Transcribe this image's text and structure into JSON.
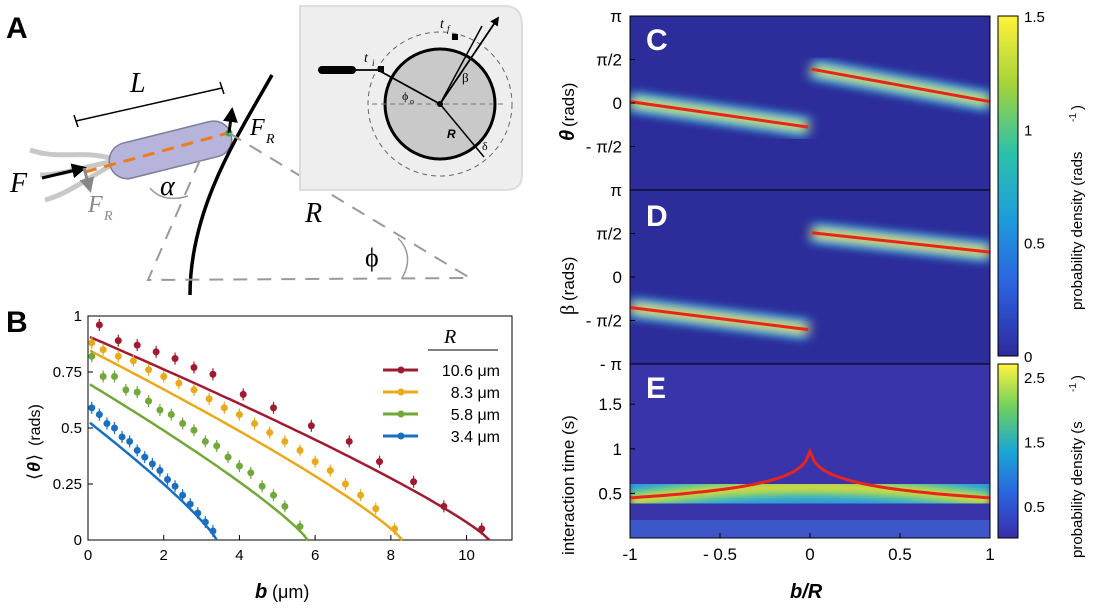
{
  "figure": {
    "panel_A": {
      "letter": "A",
      "labels": {
        "L": "L",
        "F": "F",
        "FR": "F",
        "FR_sub": "R",
        "FR2": "F",
        "FR2_sub": "R",
        "alpha": "α",
        "R": "R",
        "phi": "ϕ"
      },
      "inset": {
        "ti": "t",
        "ti_sub": "i",
        "tf": "t",
        "tf_sub": "f",
        "beta": "β",
        "phi0": "ϕ",
        "phi0_sub": "o",
        "R": "R",
        "delta": "δ"
      }
    },
    "panel_B": {
      "letter": "B",
      "ylabel_open": "⟨",
      "ylabel_theta": "θ",
      "ylabel_close": "⟩",
      "ylabel_unit": "(rads)",
      "xlabel_b": "b",
      "xlabel_unit": "(μm)",
      "legend_title": "R",
      "legend": [
        {
          "label": "10.6 μm",
          "color": "#9e1b32"
        },
        {
          "label": "8.3 μm",
          "color": "#e8a91b"
        },
        {
          "label": "5.8 μm",
          "color": "#72a83a"
        },
        {
          "label": "3.4 μm",
          "color": "#1a6fc0"
        }
      ],
      "xticks": [
        "0",
        "2",
        "4",
        "6",
        "8",
        "10"
      ],
      "yticks": [
        "0",
        "0.25",
        "0.5",
        "0.75",
        "1"
      ]
    },
    "panel_C": {
      "letter": "C",
      "ylabel_theta": "θ",
      "ylabel_unit": "(rads)",
      "yticks": [
        "π",
        "π/2",
        "0",
        "- π/2"
      ]
    },
    "panel_D": {
      "letter": "D",
      "ylabel_beta": "β",
      "ylabel_unit": "(rads)",
      "yticks": [
        "π",
        "π/2",
        "0",
        "- π/2",
        "- π"
      ]
    },
    "panel_E": {
      "letter": "E",
      "ylabel": "interaction time (s)",
      "yticks": [
        "1.5",
        "1",
        "0.5"
      ]
    },
    "shared_x": {
      "xlabel": "b/R",
      "xticks": [
        "-1",
        "- 0.5",
        "0",
        "0.5",
        "1"
      ]
    },
    "colorbar_top": {
      "label": "probability density (rads",
      "label_sup": "-1",
      "label_end": ")",
      "ticks": [
        "1.5",
        "1",
        "0.5",
        "0"
      ]
    },
    "colorbar_bottom": {
      "label": "probability density (s",
      "label_sup": "-1",
      "label_end": ")",
      "ticks": [
        "2.5",
        "1.5",
        "0.5"
      ]
    }
  },
  "chart_data": [
    {
      "type": "scatter",
      "panel": "B",
      "xlabel": "b (μm)",
      "ylabel": "⟨θ⟩ (rads)",
      "xlim": [
        0,
        11.2
      ],
      "ylim": [
        0,
        1
      ],
      "series": [
        {
          "name": "10.6 μm",
          "color": "#9e1b32",
          "R": 10.6,
          "x": [
            0.3,
            0.8,
            1.3,
            1.8,
            2.3,
            2.8,
            3.3,
            4.1,
            4.9,
            5.9,
            6.9,
            7.7,
            8.6,
            9.4,
            10.4
          ],
          "y": [
            0.96,
            0.89,
            0.87,
            0.84,
            0.81,
            0.77,
            0.74,
            0.65,
            0.59,
            0.51,
            0.44,
            0.35,
            0.26,
            0.15,
            0.05
          ],
          "fit_y0": 0.91,
          "fit_R": 10.6
        },
        {
          "name": "8.3 μm",
          "color": "#e8a91b",
          "R": 8.3,
          "x": [
            0.1,
            0.4,
            0.8,
            1.2,
            1.6,
            2.0,
            2.4,
            2.8,
            3.2,
            3.6,
            4.0,
            4.4,
            4.8,
            5.2,
            5.6,
            6.0,
            6.4,
            6.8,
            7.2,
            7.6,
            8.1
          ],
          "y": [
            0.88,
            0.85,
            0.82,
            0.8,
            0.76,
            0.73,
            0.7,
            0.67,
            0.63,
            0.59,
            0.56,
            0.52,
            0.48,
            0.44,
            0.4,
            0.35,
            0.31,
            0.25,
            0.2,
            0.14,
            0.05
          ],
          "fit_y0": 0.85,
          "fit_R": 8.3
        },
        {
          "name": "5.8 μm",
          "color": "#72a83a",
          "R": 5.8,
          "x": [
            0.1,
            0.4,
            0.7,
            1.0,
            1.3,
            1.6,
            1.9,
            2.2,
            2.5,
            2.8,
            3.1,
            3.4,
            3.7,
            4.0,
            4.3,
            4.6,
            4.9,
            5.2,
            5.6
          ],
          "y": [
            0.82,
            0.73,
            0.73,
            0.67,
            0.66,
            0.62,
            0.58,
            0.56,
            0.52,
            0.49,
            0.44,
            0.42,
            0.37,
            0.33,
            0.3,
            0.24,
            0.2,
            0.15,
            0.06
          ],
          "fit_y0": 0.7,
          "fit_R": 5.8
        },
        {
          "name": "3.4 μm",
          "color": "#1a6fc0",
          "R": 3.4,
          "x": [
            0.1,
            0.3,
            0.5,
            0.7,
            0.9,
            1.1,
            1.3,
            1.5,
            1.7,
            1.9,
            2.1,
            2.3,
            2.5,
            2.7,
            2.9,
            3.1,
            3.3
          ],
          "y": [
            0.59,
            0.56,
            0.52,
            0.5,
            0.46,
            0.44,
            0.4,
            0.37,
            0.34,
            0.31,
            0.27,
            0.24,
            0.2,
            0.16,
            0.12,
            0.08,
            0.04
          ],
          "fit_y0": 0.53,
          "fit_R": 3.4
        }
      ]
    },
    {
      "type": "heatmap",
      "panel": "C",
      "xlabel": "b/R",
      "ylabel": "θ (rads)",
      "xlim": [
        -1,
        1
      ],
      "ylim": [
        -3.1416,
        3.1416
      ],
      "colorbar_range": [
        0,
        1.5
      ],
      "red_curve_left": {
        "x": [
          -1,
          -0.01
        ],
        "y": [
          0.05,
          -0.87
        ]
      },
      "red_curve_right": {
        "x": [
          0.01,
          1
        ],
        "y": [
          1.22,
          0.05
        ]
      }
    },
    {
      "type": "heatmap",
      "panel": "D",
      "xlabel": "b/R",
      "ylabel": "β (rads)",
      "xlim": [
        -1,
        1
      ],
      "ylim": [
        -3.1416,
        3.1416
      ],
      "colorbar_range": [
        0,
        1.5
      ],
      "red_curve_left": {
        "x": [
          -1,
          -0.01
        ],
        "y": [
          -1.1,
          -1.9
        ]
      },
      "red_curve_right": {
        "x": [
          0.01,
          1
        ],
        "y": [
          1.6,
          0.9
        ]
      }
    },
    {
      "type": "heatmap",
      "panel": "E",
      "xlabel": "b/R",
      "ylabel": "interaction time (s)",
      "xlim": [
        -1,
        1
      ],
      "ylim": [
        0,
        1.95
      ],
      "colorbar_range": [
        0,
        2.7
      ],
      "red_curve": {
        "peak": 0.97,
        "edge": 0.45
      }
    }
  ],
  "colors": {
    "red_curve": "#e8241e",
    "viridis_like": [
      "#2f2fa8",
      "#2b60d9",
      "#1f9fd8",
      "#2cc3a8",
      "#7fd45a",
      "#d8d22a",
      "#fff23a"
    ]
  }
}
